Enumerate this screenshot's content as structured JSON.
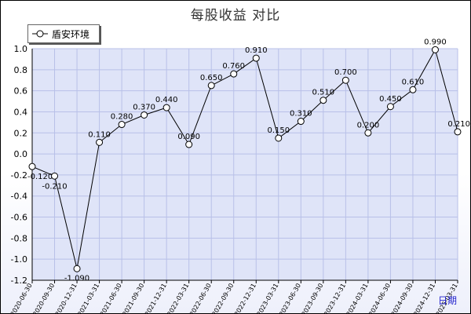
{
  "chart_data": {
    "type": "line",
    "title": "每股收益  对比",
    "xlabel": "日期",
    "ylabel": "",
    "ylim": [
      -1.2,
      1.0
    ],
    "yticks": [
      "1.0",
      "0.8",
      "0.6",
      "0.4",
      "0.2",
      "0.0",
      "-0.2",
      "-0.4",
      "-0.6",
      "-0.8",
      "-1.0",
      "-1.2"
    ],
    "grid": true,
    "legend_position": "top-left",
    "categories": [
      "2020-06-30",
      "2020-09-30",
      "2020-12-31",
      "2021-03-31",
      "2021-06-30",
      "2021-09-30",
      "2021-12-31",
      "2022-03-31",
      "2022-06-30",
      "2022-09-30",
      "2022-12-31",
      "2023-03-31",
      "2023-06-30",
      "2023-09-30",
      "2023-12-31",
      "2024-03-31",
      "2024-06-30",
      "2024-09-30",
      "2024-12-31",
      "2025-03-31"
    ],
    "series": [
      {
        "name": "盾安环境",
        "values": [
          -0.12,
          -0.21,
          -1.09,
          0.11,
          0.28,
          0.37,
          0.44,
          0.09,
          0.65,
          0.76,
          0.91,
          0.15,
          0.31,
          0.51,
          0.7,
          0.2,
          0.45,
          0.61,
          0.99,
          0.21
        ],
        "labels": [
          "-0.120",
          "-0.210",
          "-1.090",
          "0.110",
          "0.280",
          "0.370",
          "0.440",
          "0.090",
          "0.650",
          "0.760",
          "0.910",
          "0.150",
          "0.310",
          "0.510",
          "0.700",
          "0.200",
          "0.450",
          "0.610",
          "0.990",
          "0.210"
        ]
      }
    ],
    "colors": {
      "line": "#000000",
      "grid": "#b8c0e8",
      "plot_bg": "#dfe4f8",
      "xunit": "#2222cc"
    }
  }
}
